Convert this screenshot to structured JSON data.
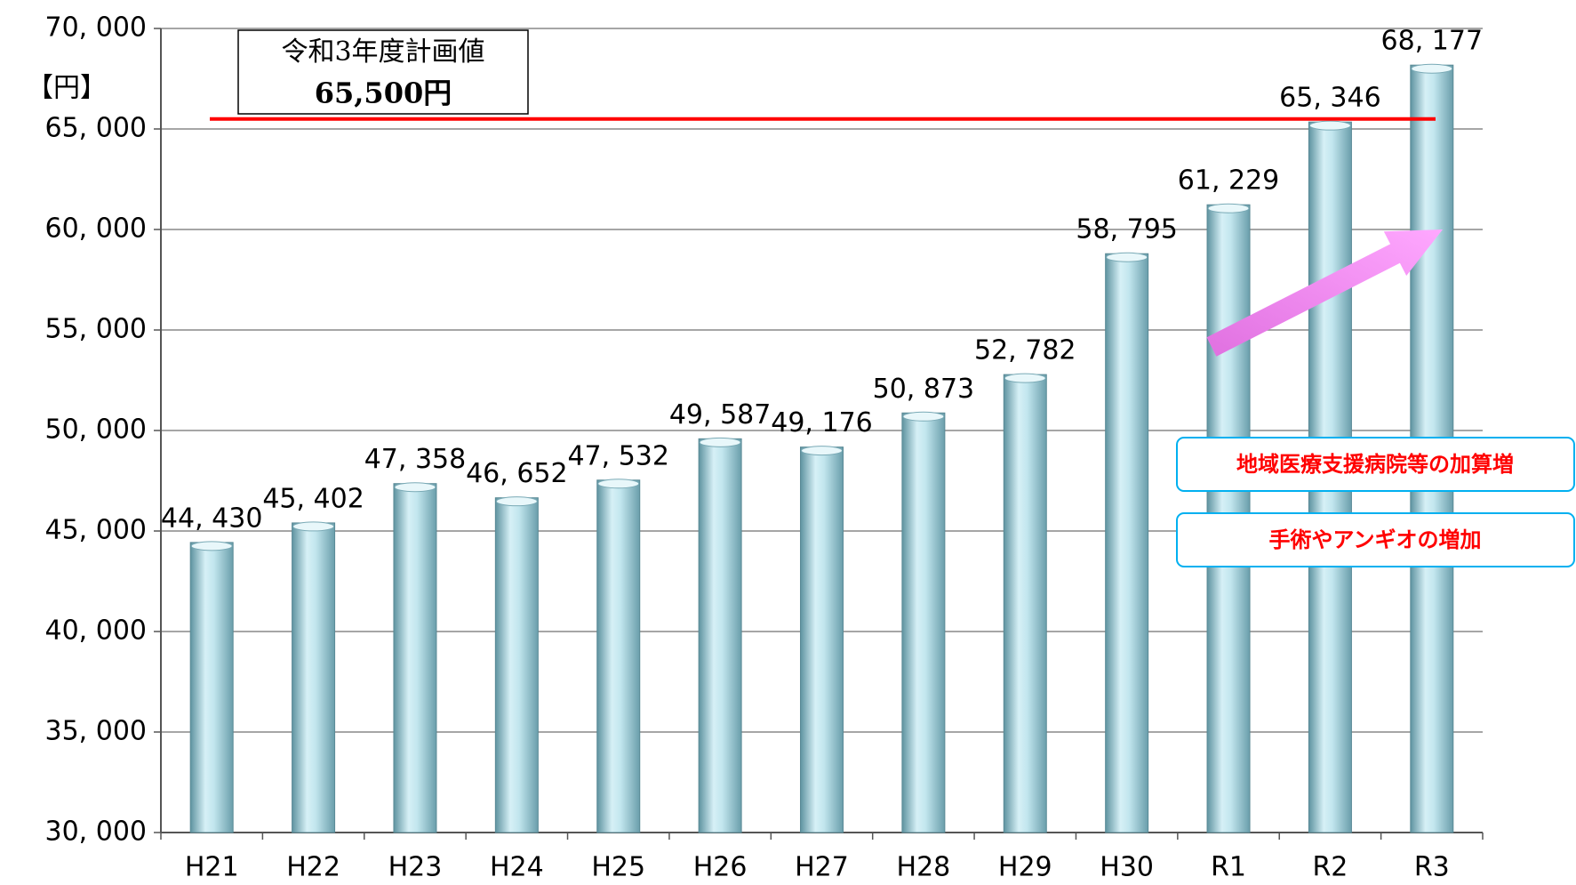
{
  "chart_data": {
    "type": "bar",
    "y_axis_label": "【円】",
    "categories": [
      "H21",
      "H22",
      "H23",
      "H24",
      "H25",
      "H26",
      "H27",
      "H28",
      "H29",
      "H30",
      "R1",
      "R2",
      "R3"
    ],
    "values": [
      44430,
      45402,
      47358,
      46652,
      47532,
      49587,
      49176,
      50873,
      52782,
      58795,
      61229,
      65346,
      68177
    ],
    "value_labels": [
      "44, 430",
      "45, 402",
      "47, 358",
      "46, 652",
      "47, 532",
      "49, 587",
      "49, 176",
      "50, 873",
      "52, 782",
      "58, 795",
      "61, 229",
      "65, 346",
      "68, 177"
    ],
    "color": "#a8d8e4",
    "ylim": [
      30000,
      70000
    ],
    "yticks": [
      {
        "value": 30000,
        "label": "30, 000"
      },
      {
        "value": 35000,
        "label": "35, 000"
      },
      {
        "value": 40000,
        "label": "40, 000"
      },
      {
        "value": 45000,
        "label": "45, 000"
      },
      {
        "value": 50000,
        "label": "50, 000"
      },
      {
        "value": 55000,
        "label": "55, 000"
      },
      {
        "value": 60000,
        "label": "60, 000"
      },
      {
        "value": 65000,
        "label": "65, 000"
      },
      {
        "value": 70000,
        "label": "70, 000"
      }
    ],
    "grid": true,
    "reference_line": {
      "value": 65500,
      "color": "#ff0000",
      "label": [
        "令和3年度計画値",
        "65,500円"
      ]
    },
    "annotations": [
      "地域医療支援病院等の加算増",
      "手術やアンギオの増加"
    ]
  }
}
